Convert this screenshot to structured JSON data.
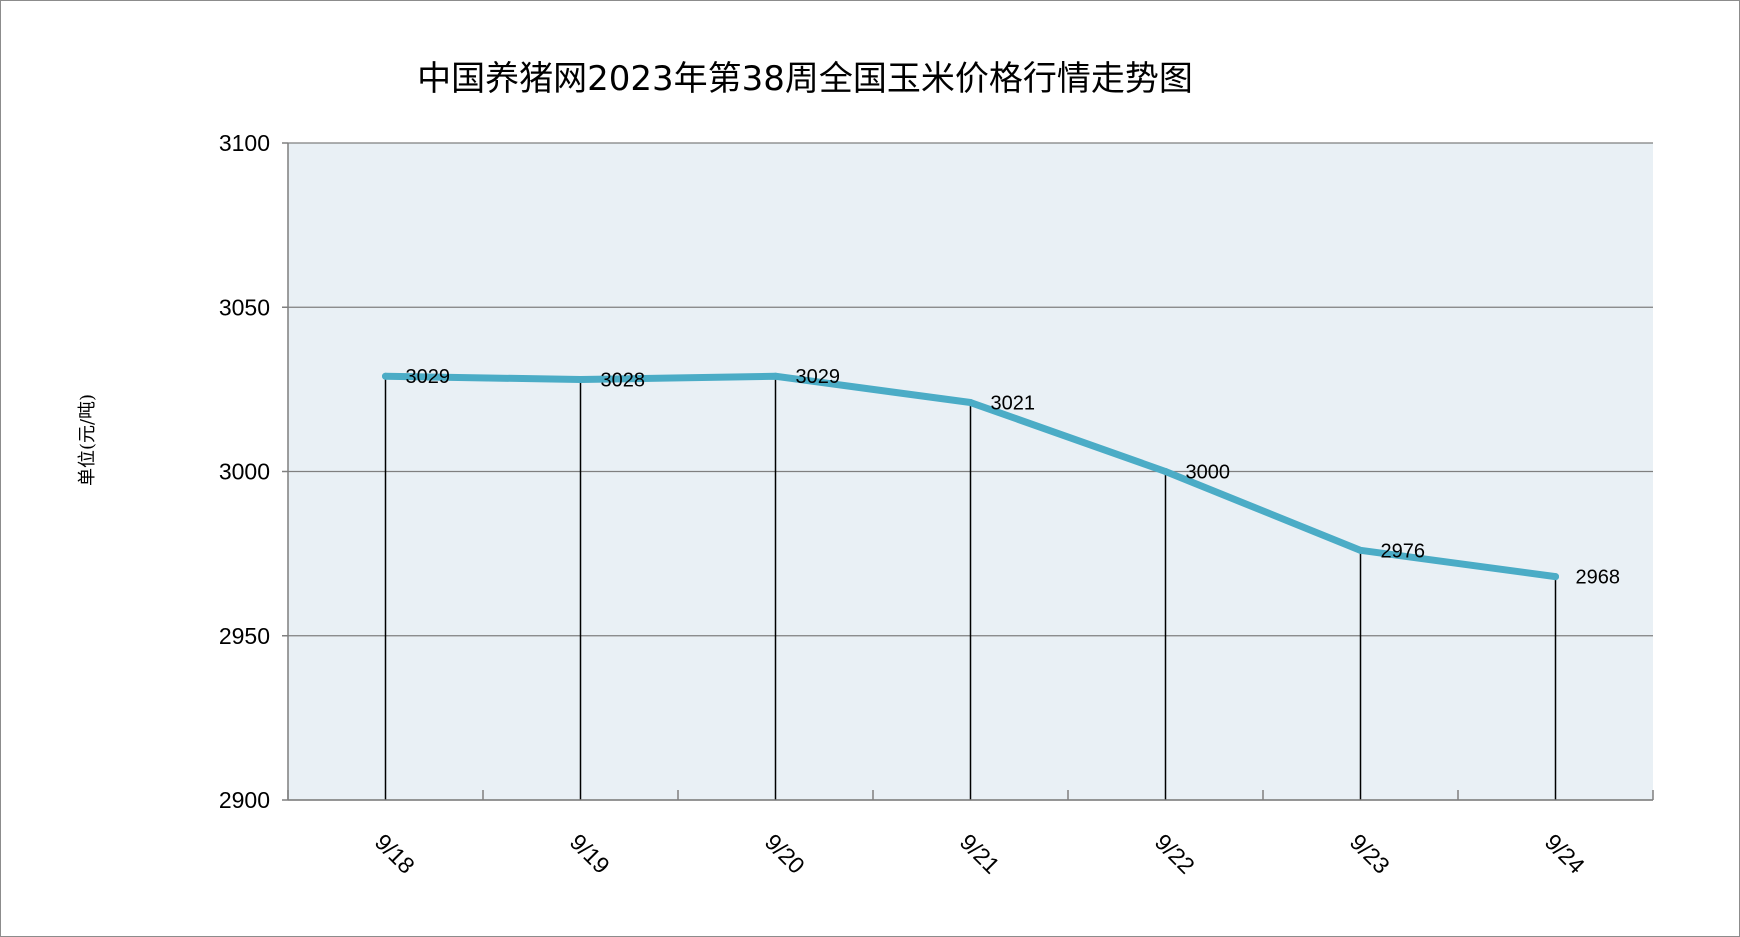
{
  "chart_data": {
    "type": "line",
    "title": "中国养猪网2023年第38周全国玉米价格行情走势图",
    "ylabel": "单位(元/吨)",
    "xlabel": "",
    "categories": [
      "9/18",
      "9/19",
      "9/20",
      "9/21",
      "9/22",
      "9/23",
      "9/24"
    ],
    "series": [
      {
        "values": [
          3029,
          3028,
          3029,
          3021,
          3000,
          2976,
          2968
        ]
      }
    ],
    "ylim": [
      2900,
      3100
    ],
    "yticks": [
      2900,
      2950,
      3000,
      3050,
      3100
    ],
    "grid": true,
    "drop_lines": true,
    "data_labels": true,
    "legend": "none",
    "colors": {
      "line": "#4bacc6",
      "plot_background": "#e9f0f5",
      "gridline": "#7f7f7f",
      "axis": "#7f7f7f",
      "drop_line": "#000000"
    }
  }
}
